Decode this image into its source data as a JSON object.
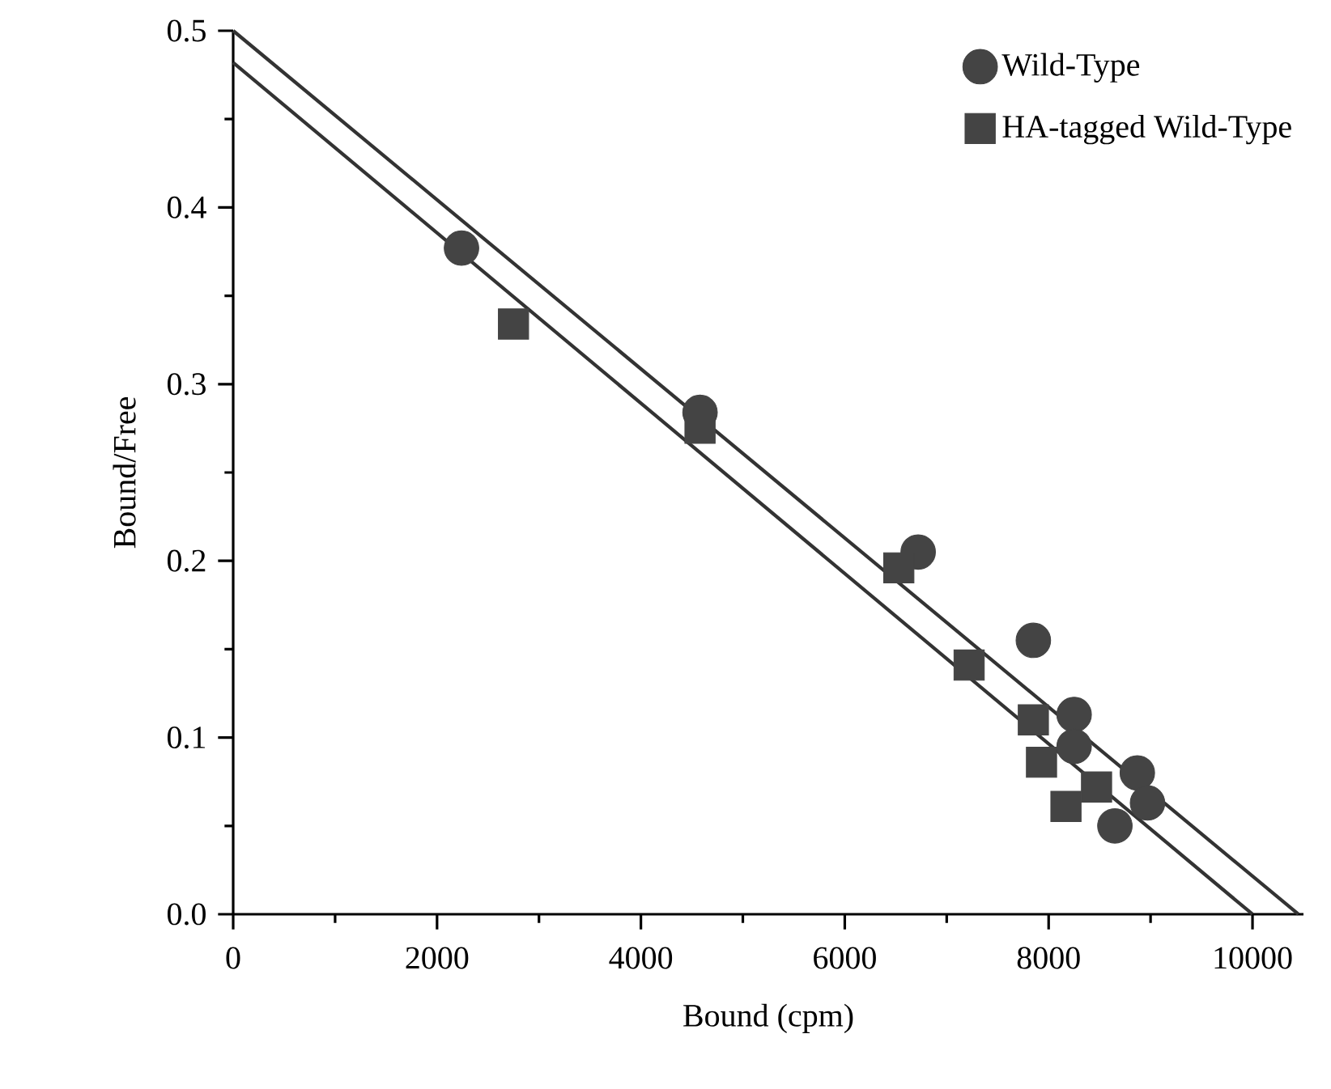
{
  "chart_data": {
    "type": "scatter",
    "xlabel": "Bound (cpm)",
    "ylabel": "Bound/Free",
    "xlim": [
      0,
      10500
    ],
    "ylim": [
      0,
      0.5
    ],
    "xticks": [
      0,
      2000,
      4000,
      6000,
      8000,
      10000
    ],
    "yticks": [
      {
        "value": 0,
        "label": "0.0"
      },
      {
        "value": 0.1,
        "label": "0.1"
      },
      {
        "value": 0.2,
        "label": "0.2"
      },
      {
        "value": 0.3,
        "label": "0.3"
      },
      {
        "value": 0.4,
        "label": "0.4"
      },
      {
        "value": 0.5,
        "label": "0.5"
      }
    ],
    "grid": false,
    "legend": "top right",
    "series": [
      {
        "name": "Wild-Type",
        "marker": "circle",
        "color": "#444444",
        "x": [
          2240,
          4580,
          6720,
          7850,
          8250,
          8250,
          8870,
          8970,
          8650
        ],
        "values": [
          0.377,
          0.284,
          0.205,
          0.155,
          0.113,
          0.095,
          0.08,
          0.063,
          0.05
        ]
      },
      {
        "name": "HA-tagged Wild-Type",
        "marker": "square",
        "color": "#444444",
        "x": [
          2750,
          4580,
          6530,
          7220,
          7850,
          7930,
          8470,
          8170
        ],
        "values": [
          0.334,
          0.275,
          0.196,
          0.141,
          0.11,
          0.086,
          0.072,
          0.061
        ]
      },
      {
        "type": "line",
        "marker": "none",
        "color": "#333333",
        "x": [
          0,
          10450
        ],
        "values": [
          0.5,
          0
        ]
      },
      {
        "type": "line",
        "marker": "none",
        "color": "#333333",
        "x": [
          0,
          10000
        ],
        "values": [
          0.482,
          0
        ]
      }
    ]
  }
}
